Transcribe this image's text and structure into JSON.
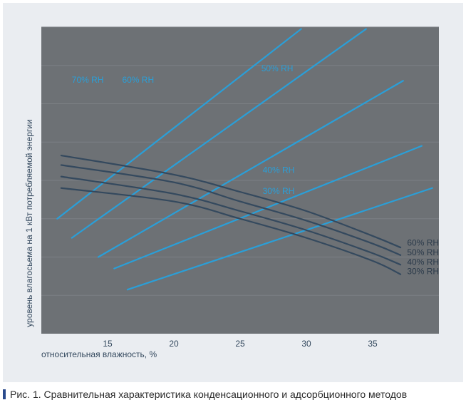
{
  "chart_data": {
    "type": "line",
    "title": "",
    "xlabel": "относительная влажность, %",
    "ylabel": "уровень влагосьема на 1 кВт потребляемой энергии",
    "xlim": [
      10,
      40
    ],
    "ylim": [
      0,
      8
    ],
    "x_ticks": [
      15,
      20,
      25,
      30,
      35
    ],
    "y_ticks": [
      1,
      2,
      3,
      4,
      5,
      6,
      7,
      8
    ],
    "x_tick_labels": [
      "15",
      "20",
      "25",
      "30",
      "35"
    ],
    "grid": "horizontal",
    "colors": {
      "plot_bg": "#6d7175",
      "panel_bg": "#eaedf1",
      "adsorption": "#2a9fd8",
      "condensation": "#34495e"
    },
    "series": [
      {
        "name": "70% RH",
        "group": "adsorption",
        "label_pos": [
          12.3,
          6.55
        ],
        "x": [
          11.2,
          29.6
        ],
        "y": [
          3.0,
          7.95
        ]
      },
      {
        "name": "60% RH",
        "group": "adsorption",
        "label_pos": [
          16.1,
          6.55
        ],
        "x": [
          12.3,
          34.5
        ],
        "y": [
          2.5,
          7.95
        ]
      },
      {
        "name": "50% RH",
        "group": "adsorption",
        "label_pos": [
          26.6,
          6.85
        ],
        "x": [
          14.3,
          37.3
        ],
        "y": [
          2.0,
          6.6
        ]
      },
      {
        "name": "40% RH",
        "group": "adsorption",
        "label_pos": [
          26.7,
          4.2
        ],
        "x": [
          15.5,
          38.7
        ],
        "y": [
          1.7,
          4.9
        ]
      },
      {
        "name": "30% RH",
        "group": "adsorption",
        "label_pos": [
          26.7,
          3.65
        ],
        "x": [
          16.5,
          39.5
        ],
        "y": [
          1.15,
          3.8
        ]
      },
      {
        "name": "60% RH",
        "group": "condensation",
        "label_pos": [
          37.6,
          2.3
        ],
        "x": [
          11.5,
          20,
          25,
          30,
          35,
          37.1
        ],
        "y": [
          4.65,
          4.15,
          3.7,
          3.2,
          2.55,
          2.25
        ]
      },
      {
        "name": "50% RH",
        "group": "condensation",
        "label_pos": [
          37.6,
          2.05
        ],
        "x": [
          11.5,
          20,
          25,
          30,
          35,
          37.1
        ],
        "y": [
          4.4,
          3.95,
          3.45,
          2.95,
          2.35,
          2.05
        ]
      },
      {
        "name": "40% RH",
        "group": "condensation",
        "label_pos": [
          37.6,
          1.8
        ],
        "x": [
          11.5,
          20,
          25,
          30,
          35,
          37.1
        ],
        "y": [
          4.1,
          3.65,
          3.2,
          2.7,
          2.1,
          1.8
        ]
      },
      {
        "name": "30% RH",
        "group": "condensation",
        "label_pos": [
          37.6,
          1.55
        ],
        "x": [
          11.5,
          20,
          25,
          30,
          35,
          37.1
        ],
        "y": [
          3.8,
          3.45,
          3.0,
          2.5,
          1.9,
          1.55
        ]
      }
    ]
  },
  "caption": {
    "text": "Рис. 1. Сравнительная характеристика конденсационного и адсорбционного методов"
  }
}
